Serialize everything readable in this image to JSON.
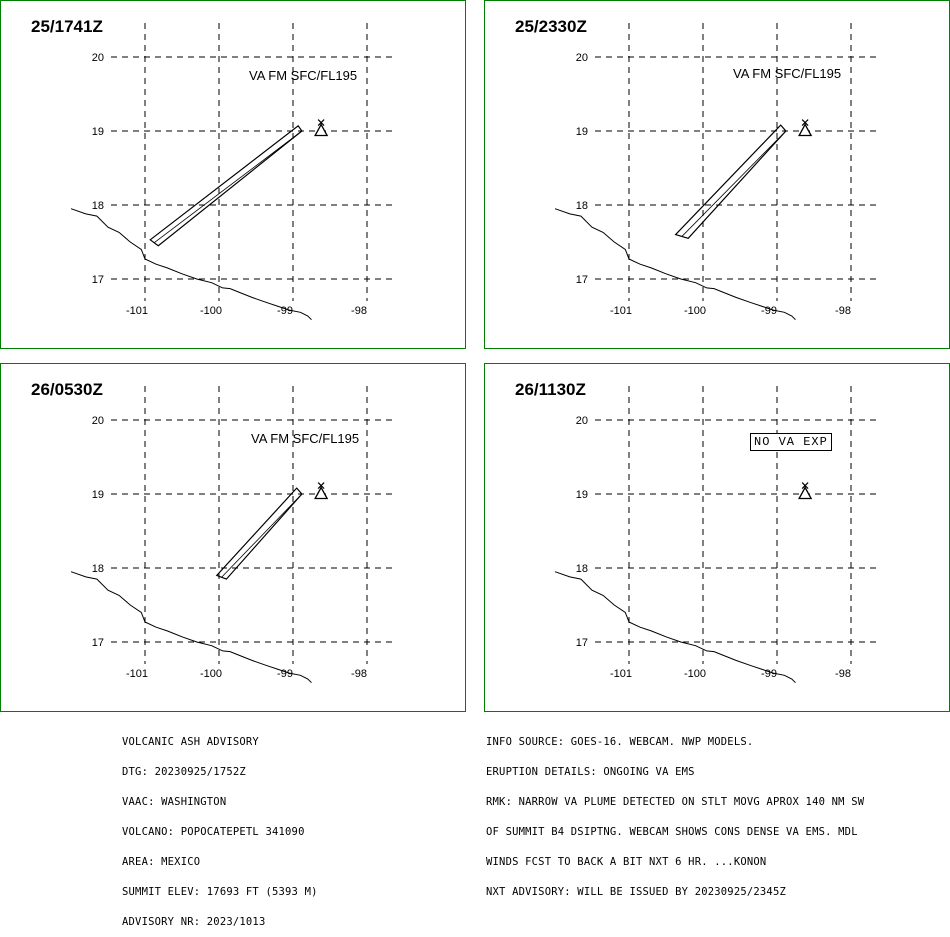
{
  "panels": [
    {
      "title": "25/1741Z",
      "label": "VA FM SFC/FL195",
      "label_boxed": false,
      "plume": [
        [
          -100.93,
          17.53
        ],
        [
          -100.82,
          17.45
        ],
        [
          -98.88,
          19.0
        ],
        [
          -98.93,
          19.07
        ]
      ]
    },
    {
      "title": "25/2330Z",
      "label": "VA FM SFC/FL195",
      "label_boxed": false,
      "plume": [
        [
          -100.37,
          17.6
        ],
        [
          -100.2,
          17.55
        ],
        [
          -98.88,
          19.0
        ],
        [
          -98.95,
          19.08
        ]
      ]
    },
    {
      "title": "26/0530Z",
      "label": "VA FM SFC/FL195",
      "label_boxed": false,
      "plume": [
        [
          -100.03,
          17.9
        ],
        [
          -99.9,
          17.85
        ],
        [
          -98.88,
          19.0
        ],
        [
          -98.95,
          19.08
        ]
      ]
    },
    {
      "title": "26/1130Z",
      "label": "NO VA EXP",
      "label_boxed": true,
      "plume": []
    }
  ],
  "axes": {
    "lat_ticks": [
      "20",
      "19",
      "18",
      "17"
    ],
    "lon_ticks": [
      "-101",
      "-100",
      "-99",
      "-98"
    ]
  },
  "volcano": {
    "lon": -98.62,
    "lat": 19.02,
    "name": "POPOCATEPETL"
  },
  "coastline": [
    [
      -102.0,
      17.95
    ],
    [
      -101.8,
      17.88
    ],
    [
      -101.65,
      17.85
    ],
    [
      -101.5,
      17.7
    ],
    [
      -101.35,
      17.63
    ],
    [
      -101.2,
      17.5
    ],
    [
      -101.05,
      17.4
    ],
    [
      -101.0,
      17.27
    ],
    [
      -100.85,
      17.2
    ],
    [
      -100.7,
      17.15
    ],
    [
      -100.5,
      17.07
    ],
    [
      -100.3,
      17.0
    ],
    [
      -100.1,
      16.95
    ],
    [
      -99.95,
      16.88
    ],
    [
      -99.85,
      16.87
    ],
    [
      -99.75,
      16.83
    ],
    [
      -99.55,
      16.75
    ],
    [
      -99.35,
      16.68
    ],
    [
      -99.2,
      16.63
    ],
    [
      -99.05,
      16.58
    ],
    [
      -98.9,
      16.55
    ],
    [
      -98.8,
      16.5
    ],
    [
      -98.75,
      16.45
    ]
  ],
  "advisory_left": [
    "VOLCANIC ASH ADVISORY",
    "DTG: 20230925/1752Z",
    "VAAC: WASHINGTON",
    "VOLCANO: POPOCATEPETL 341090",
    "AREA: MEXICO",
    "SUMMIT ELEV: 17693 FT (5393 M)",
    "ADVISORY NR: 2023/1013"
  ],
  "advisory_right": [
    "INFO SOURCE: GOES-16. WEBCAM. NWP MODELS.",
    "ERUPTION DETAILS: ONGOING VA EMS",
    "RMK: NARROW VA PLUME DETECTED ON STLT MOVG APROX 140 NM SW",
    "OF SUMMIT B4 DSIPTNG. WEBCAM SHOWS CONS DENSE VA EMS. MDL",
    "WINDS FCST TO BACK A BIT NXT 6 HR. ...KONON",
    "NXT ADVISORY: WILL BE ISSUED BY 20230925/2345Z"
  ],
  "colors": {
    "frame": "#008000",
    "lines": "#000000"
  }
}
